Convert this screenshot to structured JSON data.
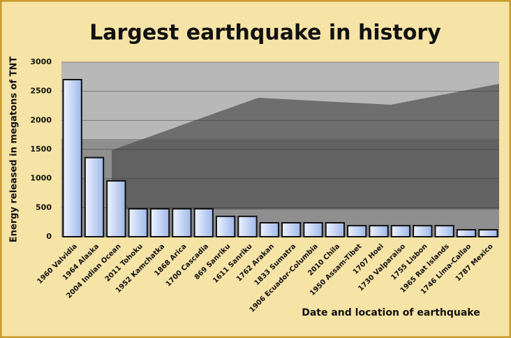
{
  "chart_data": {
    "type": "bar",
    "title": "Largest earthquake in history",
    "x_label": "Date and location of earthquake",
    "y_label": "Energy released in megatons of TNT",
    "categories": [
      "1960 Valvidia",
      "1964 Alaska",
      "2004 Indian Ocean",
      "2011 Tohoku",
      "1952 Kamchatka",
      "1868 Arica",
      "1700 Cascadia",
      "869 Sanriku",
      "1611 Sanriku",
      "1762 Arakan",
      "1833 Sumatra",
      "1906 Ecuador-Columbia",
      "2010 Chila",
      "1950 Assam-Tibet",
      "1707 Hoei",
      "1730 Valparaiso",
      "1755 Lisbon",
      "1965 Rat Islands",
      "1746 Lima-Callao",
      "1787 Mexico"
    ],
    "values": [
      2700,
      1360,
      960,
      480,
      480,
      480,
      480,
      350,
      350,
      240,
      240,
      240,
      240,
      190,
      190,
      190,
      190,
      190,
      120,
      120
    ],
    "color": "#b9cdf2",
    "ylim": [
      0,
      3000
    ],
    "yticks": [
      0,
      500,
      1000,
      1500,
      2000,
      2500,
      3000
    ],
    "grid": true
  }
}
